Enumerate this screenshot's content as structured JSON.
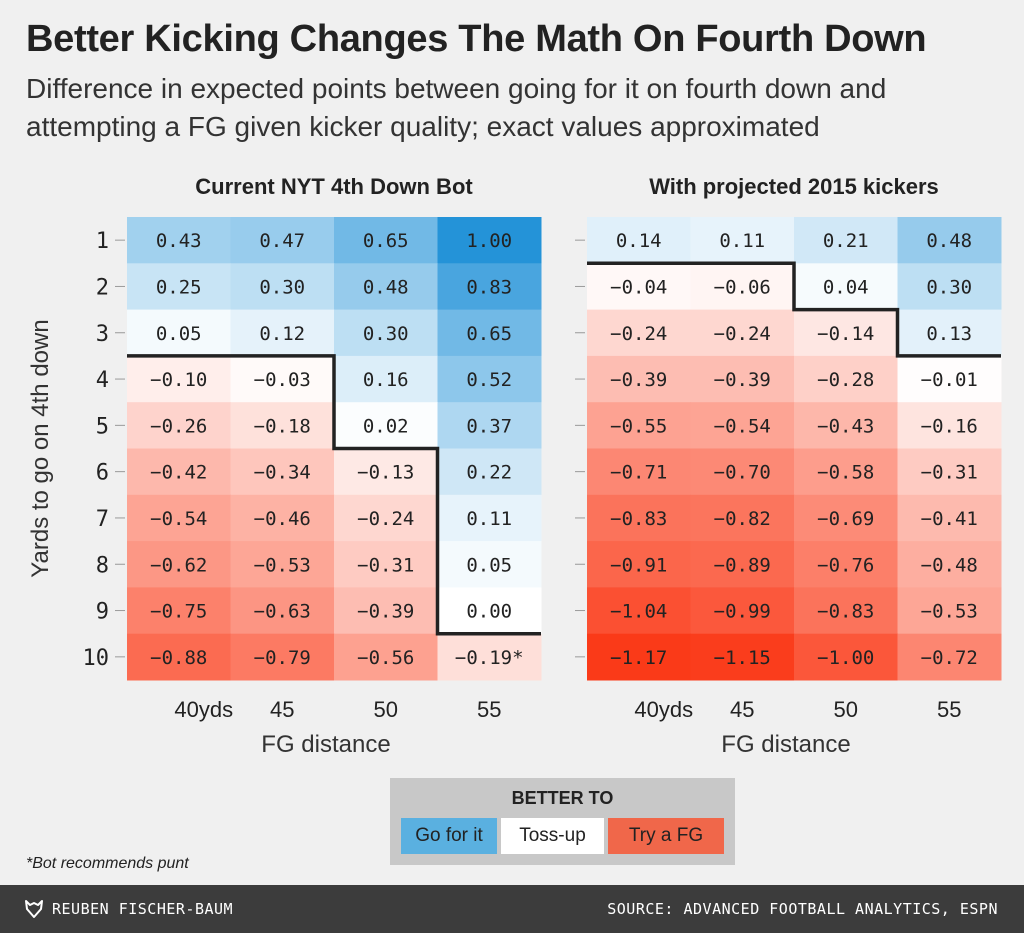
{
  "title": "Better Kicking Changes The Math On Fourth Down",
  "subtitle": "Difference in expected points between going for it on fourth down and attempting a FG given kicker quality; exact values approximated",
  "colors": {
    "go_for_it": "#5ab0e0",
    "toss_up": "#ffffff",
    "try_fg": "#f0674a",
    "background": "#f0f0f0",
    "footer": "#3c3c3c"
  },
  "chart_data": [
    {
      "type": "heatmap",
      "title": "Current NYT 4th Down Bot",
      "xlabel": "FG distance",
      "ylabel": "Yards to go on 4th down",
      "x_tick_labels": [
        "40yds",
        "45",
        "50",
        "55"
      ],
      "y_tick_labels": [
        "1",
        "2",
        "3",
        "4",
        "5",
        "6",
        "7",
        "8",
        "9",
        "10"
      ],
      "values": [
        [
          0.43,
          0.47,
          0.65,
          1.0
        ],
        [
          0.25,
          0.3,
          0.48,
          0.83
        ],
        [
          0.05,
          0.12,
          0.3,
          0.65
        ],
        [
          -0.1,
          -0.03,
          0.16,
          0.52
        ],
        [
          -0.26,
          -0.18,
          0.02,
          0.37
        ],
        [
          -0.42,
          -0.34,
          -0.13,
          0.22
        ],
        [
          -0.54,
          -0.46,
          -0.24,
          0.11
        ],
        [
          -0.62,
          -0.53,
          -0.31,
          0.05
        ],
        [
          -0.75,
          -0.63,
          -0.39,
          0.0
        ],
        [
          -0.88,
          -0.79,
          -0.56,
          -0.19
        ]
      ],
      "labels": [
        [
          "0.43",
          "0.47",
          "0.65",
          "1.00"
        ],
        [
          "0.25",
          "0.30",
          "0.48",
          "0.83"
        ],
        [
          "0.05",
          "0.12",
          "0.30",
          "0.65"
        ],
        [
          "−0.10",
          "−0.03",
          "0.16",
          "0.52"
        ],
        [
          "−0.26",
          "−0.18",
          "0.02",
          "0.37"
        ],
        [
          "−0.42",
          "−0.34",
          "−0.13",
          "0.22"
        ],
        [
          "−0.54",
          "−0.46",
          "−0.24",
          "0.11"
        ],
        [
          "−0.62",
          "−0.53",
          "−0.31",
          "0.05"
        ],
        [
          "−0.75",
          "−0.63",
          "−0.39",
          "0.00"
        ],
        [
          "−0.88",
          "−0.79",
          "−0.56",
          "−0.19*"
        ]
      ],
      "boundary_rows_go_for_it": [
        3,
        3,
        5,
        9
      ]
    },
    {
      "type": "heatmap",
      "title": "With projected 2015 kickers",
      "xlabel": "FG distance",
      "ylabel": "",
      "x_tick_labels": [
        "40yds",
        "45",
        "50",
        "55"
      ],
      "y_tick_labels": [
        "1",
        "2",
        "3",
        "4",
        "5",
        "6",
        "7",
        "8",
        "9",
        "10"
      ],
      "values": [
        [
          0.14,
          0.11,
          0.21,
          0.48
        ],
        [
          -0.04,
          -0.06,
          0.04,
          0.3
        ],
        [
          -0.24,
          -0.24,
          -0.14,
          0.13
        ],
        [
          -0.39,
          -0.39,
          -0.28,
          -0.01
        ],
        [
          -0.55,
          -0.54,
          -0.43,
          -0.16
        ],
        [
          -0.71,
          -0.7,
          -0.58,
          -0.31
        ],
        [
          -0.83,
          -0.82,
          -0.69,
          -0.41
        ],
        [
          -0.91,
          -0.89,
          -0.76,
          -0.48
        ],
        [
          -1.04,
          -0.99,
          -0.83,
          -0.53
        ],
        [
          -1.17,
          -1.15,
          -1.0,
          -0.72
        ]
      ],
      "labels": [
        [
          "0.14",
          "0.11",
          "0.21",
          "0.48"
        ],
        [
          "−0.04",
          "−0.06",
          "0.04",
          "0.30"
        ],
        [
          "−0.24",
          "−0.24",
          "−0.14",
          "0.13"
        ],
        [
          "−0.39",
          "−0.39",
          "−0.28",
          "−0.01"
        ],
        [
          "−0.55",
          "−0.54",
          "−0.43",
          "−0.16"
        ],
        [
          "−0.71",
          "−0.70",
          "−0.58",
          "−0.31"
        ],
        [
          "−0.83",
          "−0.82",
          "−0.69",
          "−0.41"
        ],
        [
          "−0.91",
          "−0.89",
          "−0.76",
          "−0.48"
        ],
        [
          "−1.04",
          "−0.99",
          "−0.83",
          "−0.53"
        ],
        [
          "−1.17",
          "−1.15",
          "−1.00",
          "−0.72"
        ]
      ],
      "boundary_rows_go_for_it": [
        1,
        1,
        2,
        3
      ]
    }
  ],
  "legend": {
    "title": "BETTER TO",
    "items": [
      "Go for it",
      "Toss-up",
      "Try a FG"
    ]
  },
  "footnote": "*Bot recommends punt",
  "footer": {
    "author": "REUBEN FISCHER-BAUM",
    "source": "SOURCE: ADVANCED FOOTBALL ANALYTICS, ESPN"
  }
}
